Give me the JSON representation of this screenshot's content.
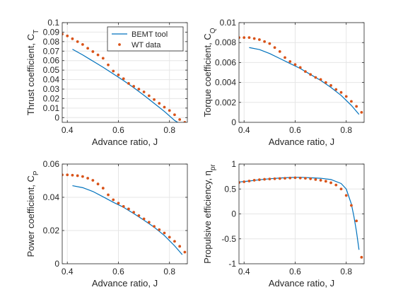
{
  "chart_data": [
    {
      "type": "line",
      "xlabel": "Advance ratio, J",
      "ylabel": "Thrust coefficient, C",
      "ylabel_sub": "T",
      "xlim": [
        0.38,
        0.87
      ],
      "ylim": [
        -0.005,
        0.1
      ],
      "xticks": [
        0.4,
        0.6,
        0.8
      ],
      "xtick_labels": [
        "0.4",
        "0.6",
        "0.8"
      ],
      "yticks": [
        0,
        0.01,
        0.02,
        0.03,
        0.04,
        0.05,
        0.06,
        0.07,
        0.08,
        0.09,
        0.1
      ],
      "ytick_labels": [
        "0",
        "0.01",
        "0.02",
        "0.03",
        "0.04",
        "0.05",
        "0.06",
        "0.07",
        "0.08",
        "0.09",
        "0.1"
      ],
      "grid": true,
      "legend": {
        "position": "top-right",
        "entries": [
          "BEMT tool",
          "WT data"
        ]
      },
      "series": [
        {
          "name": "BEMT tool",
          "style": "line",
          "color": "#0072BD",
          "x": [
            0.42,
            0.46,
            0.5,
            0.54,
            0.58,
            0.62,
            0.66,
            0.7,
            0.74,
            0.78,
            0.82,
            0.85
          ],
          "y": [
            0.072,
            0.066,
            0.0595,
            0.053,
            0.046,
            0.039,
            0.0315,
            0.0235,
            0.015,
            0.0065,
            -0.003,
            -0.008
          ]
        },
        {
          "name": "WT data",
          "style": "markers",
          "color": "#D95319",
          "x": [
            0.38,
            0.4,
            0.42,
            0.44,
            0.46,
            0.48,
            0.5,
            0.52,
            0.54,
            0.56,
            0.58,
            0.6,
            0.62,
            0.64,
            0.66,
            0.68,
            0.7,
            0.72,
            0.74,
            0.76,
            0.78,
            0.8,
            0.82,
            0.84,
            0.86
          ],
          "y": [
            0.088,
            0.086,
            0.083,
            0.08,
            0.077,
            0.073,
            0.0695,
            0.066,
            0.0625,
            0.0555,
            0.049,
            0.045,
            0.041,
            0.036,
            0.033,
            0.03,
            0.027,
            0.023,
            0.019,
            0.015,
            0.011,
            0.0075,
            0.003,
            -0.002,
            -0.005
          ]
        }
      ]
    },
    {
      "type": "line",
      "xlabel": "Advance ratio, J",
      "ylabel": "Torque coefficient, C",
      "ylabel_sub": "Q",
      "xlim": [
        0.38,
        0.87
      ],
      "ylim": [
        0,
        0.01
      ],
      "xticks": [
        0.4,
        0.6,
        0.8
      ],
      "xtick_labels": [
        "0.4",
        "0.6",
        "0.8"
      ],
      "yticks": [
        0,
        0.002,
        0.004,
        0.006,
        0.008,
        0.01
      ],
      "ytick_labels": [
        "0",
        "0.002",
        "0.004",
        "0.006",
        "0.008",
        "0.01"
      ],
      "grid": true,
      "series": [
        {
          "name": "BEMT tool",
          "style": "line",
          "color": "#0072BD",
          "x": [
            0.42,
            0.46,
            0.5,
            0.54,
            0.58,
            0.62,
            0.66,
            0.7,
            0.74,
            0.78,
            0.82,
            0.85
          ],
          "y": [
            0.0075,
            0.0073,
            0.0069,
            0.0064,
            0.0059,
            0.0054,
            0.0048,
            0.0042,
            0.0035,
            0.0027,
            0.0017,
            0.0008
          ]
        },
        {
          "name": "WT data",
          "style": "markers",
          "color": "#D95319",
          "x": [
            0.38,
            0.4,
            0.42,
            0.44,
            0.46,
            0.48,
            0.5,
            0.52,
            0.54,
            0.56,
            0.58,
            0.6,
            0.62,
            0.64,
            0.66,
            0.68,
            0.7,
            0.72,
            0.74,
            0.76,
            0.78,
            0.8,
            0.82,
            0.84,
            0.86
          ],
          "y": [
            0.0085,
            0.0085,
            0.0085,
            0.0084,
            0.0083,
            0.0081,
            0.0079,
            0.0075,
            0.0071,
            0.0065,
            0.0061,
            0.0058,
            0.0055,
            0.0051,
            0.0048,
            0.0045,
            0.0043,
            0.004,
            0.0037,
            0.0033,
            0.003,
            0.0026,
            0.0021,
            0.0016,
            0.001
          ]
        }
      ]
    },
    {
      "type": "line",
      "xlabel": "Advance ratio, J",
      "ylabel": "Power coefficient, C",
      "ylabel_sub": "P",
      "xlim": [
        0.38,
        0.87
      ],
      "ylim": [
        0,
        0.06
      ],
      "xticks": [
        0.4,
        0.6,
        0.8
      ],
      "xtick_labels": [
        "0.4",
        "0.6",
        "0.8"
      ],
      "yticks": [
        0,
        0.02,
        0.04,
        0.06
      ],
      "ytick_labels": [
        "0",
        "0.02",
        "0.04",
        "0.06"
      ],
      "grid": true,
      "series": [
        {
          "name": "BEMT tool",
          "style": "line",
          "color": "#0072BD",
          "x": [
            0.42,
            0.46,
            0.5,
            0.54,
            0.58,
            0.62,
            0.66,
            0.7,
            0.74,
            0.78,
            0.82,
            0.85
          ],
          "y": [
            0.047,
            0.0458,
            0.0435,
            0.0403,
            0.037,
            0.034,
            0.0302,
            0.0262,
            0.022,
            0.017,
            0.0108,
            0.0055
          ]
        },
        {
          "name": "WT data",
          "style": "markers",
          "color": "#D95319",
          "x": [
            0.38,
            0.4,
            0.42,
            0.44,
            0.46,
            0.48,
            0.5,
            0.52,
            0.54,
            0.56,
            0.58,
            0.6,
            0.62,
            0.64,
            0.66,
            0.68,
            0.7,
            0.72,
            0.74,
            0.76,
            0.78,
            0.8,
            0.82,
            0.84,
            0.86
          ],
          "y": [
            0.0535,
            0.0535,
            0.0533,
            0.053,
            0.0525,
            0.0515,
            0.0502,
            0.048,
            0.0455,
            0.0415,
            0.0385,
            0.0365,
            0.0345,
            0.033,
            0.031,
            0.029,
            0.027,
            0.025,
            0.0225,
            0.0205,
            0.0185,
            0.016,
            0.0135,
            0.0105,
            0.007
          ]
        }
      ]
    },
    {
      "type": "line",
      "xlabel": "Advance ratio, J",
      "ylabel": "Propulsive efficiency, η",
      "ylabel_sub": "pr",
      "xlim": [
        0.38,
        0.87
      ],
      "ylim": [
        -1,
        1
      ],
      "xticks": [
        0.4,
        0.6,
        0.8
      ],
      "xtick_labels": [
        "0.4",
        "0.6",
        "0.8"
      ],
      "yticks": [
        -1,
        -0.5,
        0,
        0.5,
        1
      ],
      "ytick_labels": [
        "-1",
        "-0.5",
        "0",
        "0.5",
        "1"
      ],
      "grid": true,
      "series": [
        {
          "name": "BEMT tool",
          "style": "line",
          "color": "#0072BD",
          "x": [
            0.38,
            0.42,
            0.46,
            0.5,
            0.54,
            0.58,
            0.62,
            0.66,
            0.7,
            0.74,
            0.78,
            0.8,
            0.82,
            0.83,
            0.84,
            0.85
          ],
          "y": [
            0.64,
            0.66,
            0.685,
            0.705,
            0.72,
            0.73,
            0.735,
            0.725,
            0.715,
            0.69,
            0.61,
            0.5,
            0.2,
            -0.05,
            -0.35,
            -0.72
          ]
        },
        {
          "name": "WT data",
          "style": "markers",
          "color": "#D95319",
          "x": [
            0.38,
            0.4,
            0.42,
            0.44,
            0.46,
            0.48,
            0.5,
            0.52,
            0.54,
            0.56,
            0.58,
            0.6,
            0.62,
            0.64,
            0.66,
            0.68,
            0.7,
            0.72,
            0.74,
            0.76,
            0.78,
            0.8,
            0.82,
            0.84,
            0.86
          ],
          "y": [
            0.63,
            0.645,
            0.66,
            0.675,
            0.685,
            0.695,
            0.7,
            0.705,
            0.71,
            0.715,
            0.72,
            0.725,
            0.72,
            0.715,
            0.705,
            0.69,
            0.675,
            0.655,
            0.625,
            0.58,
            0.5,
            0.37,
            0.17,
            -0.14,
            -0.87
          ]
        }
      ]
    }
  ]
}
